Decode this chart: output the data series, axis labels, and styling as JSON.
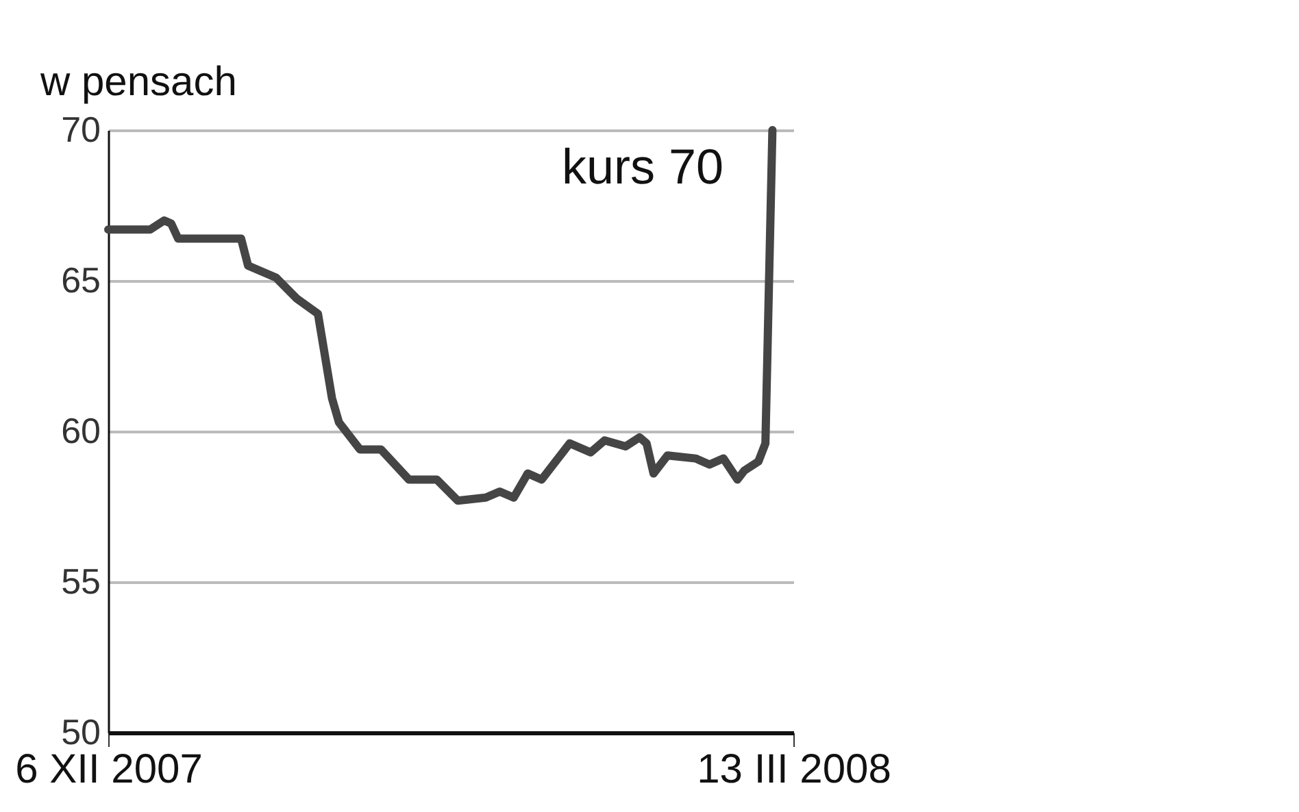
{
  "chart_data": {
    "type": "line",
    "ylabel": "w pensach",
    "x": [
      "2007-12-06",
      "2007-12-12",
      "2007-12-14",
      "2007-12-15",
      "2007-12-16",
      "2007-12-25",
      "2007-12-26",
      "2007-12-30",
      "2008-01-02",
      "2008-01-05",
      "2008-01-07",
      "2008-01-08",
      "2008-01-11",
      "2008-01-14",
      "2008-01-18",
      "2008-01-22",
      "2008-01-25",
      "2008-01-29",
      "2008-01-31",
      "2008-02-02",
      "2008-02-04",
      "2008-02-06",
      "2008-02-10",
      "2008-02-13",
      "2008-02-15",
      "2008-02-18",
      "2008-02-20",
      "2008-02-21",
      "2008-02-22",
      "2008-02-24",
      "2008-02-28",
      "2008-03-01",
      "2008-03-03",
      "2008-03-05",
      "2008-03-06",
      "2008-03-08",
      "2008-03-09",
      "2008-03-10"
    ],
    "series": [
      {
        "color": "#454545",
        "values": [
          66.7,
          66.7,
          67.0,
          66.9,
          66.4,
          66.4,
          65.5,
          65.1,
          64.4,
          63.9,
          61.1,
          60.3,
          59.4,
          59.4,
          58.4,
          58.4,
          57.7,
          57.8,
          58.0,
          57.8,
          58.6,
          58.4,
          59.6,
          59.3,
          59.7,
          59.5,
          59.8,
          59.6,
          58.6,
          59.2,
          59.1,
          58.9,
          59.1,
          58.4,
          58.7,
          59.0,
          59.6,
          70.0
        ]
      }
    ],
    "xlim": [
      "2007-12-06",
      "2008-03-13"
    ],
    "xticks": [
      {
        "value": "2007-12-06",
        "label": "6 XII 2007"
      },
      {
        "value": "2008-03-13",
        "label": "13 III 2008"
      }
    ],
    "ylim": [
      50,
      70
    ],
    "yticks": [
      50,
      55,
      60,
      65,
      70
    ],
    "grid": "y",
    "annotations": [
      "kurs 70"
    ]
  }
}
